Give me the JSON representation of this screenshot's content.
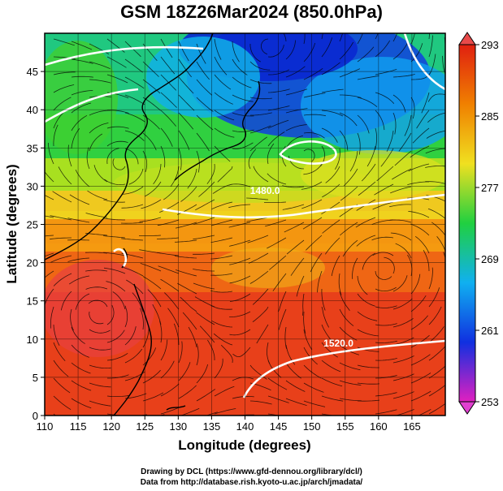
{
  "title": "GSM 18Z26Mar2024 (850.0hPa)",
  "x_axis": {
    "label": "Longitude (degrees)",
    "ticks": [
      "110",
      "115",
      "120",
      "125",
      "130",
      "135",
      "140",
      "145",
      "150",
      "155",
      "160",
      "165"
    ],
    "range": [
      110,
      170
    ]
  },
  "y_axis": {
    "label": "Latitude  (degrees)",
    "ticks": [
      "0",
      "5",
      "10",
      "15",
      "20",
      "25",
      "30",
      "35",
      "40",
      "45"
    ],
    "range": [
      0,
      50
    ]
  },
  "colorbar": {
    "ticks": [
      "253",
      "261",
      "269",
      "277",
      "285",
      "293"
    ],
    "range": [
      253,
      293
    ],
    "colors": [
      "#e020c0",
      "#1030e0",
      "#10b0f0",
      "#20d040",
      "#f0e020",
      "#f08000",
      "#e02010"
    ]
  },
  "contours": [
    {
      "label": "1480.0",
      "lat": 29,
      "lon": 143
    },
    {
      "label": "1520.0",
      "lat": 9,
      "lon": 154
    }
  ],
  "credits": {
    "line1": "Drawing by DCL (https://www.gfd-dennou.org/library/dcl/)",
    "line2": "Data from http://database.rish.kyoto-u.ac.jp/arch/jmadata/"
  }
}
